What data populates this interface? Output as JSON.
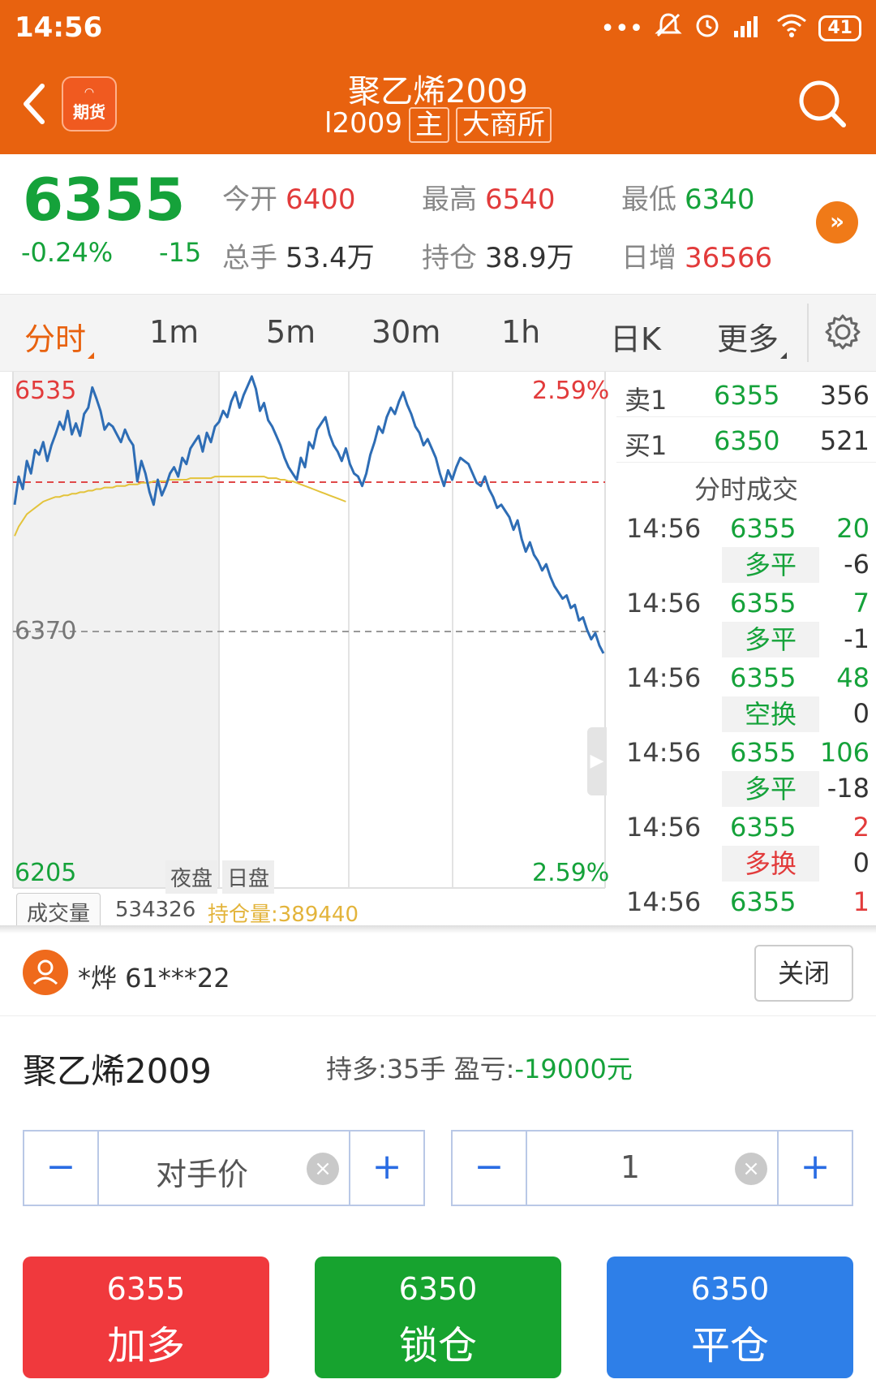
{
  "status_bar": {
    "time": "14:56",
    "battery": "41"
  },
  "header": {
    "app_badge": "期货",
    "title": "聚乙烯2009",
    "code": "l2009",
    "tag_main": "主",
    "tag_exchange": "大商所"
  },
  "quote": {
    "last_price": "6355",
    "change_pct": "-0.24%",
    "change": "-15",
    "open_label": "今开",
    "open_value": "6400",
    "high_label": "最高",
    "high_value": "6540",
    "low_label": "最低",
    "low_value": "6340",
    "volume_label": "总手",
    "volume_value": "53.4万",
    "oi_label": "持仓",
    "oi_value": "38.9万",
    "oi_change_label": "日增",
    "oi_change_value": "36566",
    "more_glyph": "»"
  },
  "tabs": [
    "分时",
    "1m",
    "5m",
    "30m",
    "1h",
    "日K",
    "更多"
  ],
  "chart": {
    "y_top_label": "6535",
    "y_mid_label": "6370",
    "y_bottom_label": "6205",
    "pct_top": "2.59%",
    "pct_bottom": "2.59%",
    "session_night": "夜盘",
    "session_day": "日盘",
    "volume_tag": "成交量",
    "volume_value": "534326",
    "open_interest": "持仓量:389440",
    "colors": {
      "price": "#2e6db5",
      "avg": "#e3c33b",
      "prev_close": "#e04848"
    }
  },
  "chart_data": {
    "type": "line",
    "ylim": [
      6205,
      6535
    ],
    "series": [
      {
        "values": [
          6450,
          6468,
          6460,
          6478,
          6470,
          6485,
          6482,
          6490,
          6478,
          6488,
          6495,
          6503,
          6498,
          6510,
          6495,
          6502,
          6494,
          6508,
          6512,
          6525,
          6518,
          6510,
          6498,
          6502,
          6500,
          6495,
          6490,
          6498,
          6492,
          6488,
          6465,
          6478,
          6470,
          6458,
          6450,
          6466,
          6456,
          6462,
          6470,
          6474,
          6468,
          6480,
          6476,
          6486,
          6490,
          6494,
          6484,
          6496,
          6490,
          6500,
          6503,
          6510,
          6506,
          6516,
          6522,
          6512,
          6520,
          6526,
          6532,
          6524,
          6510,
          6515,
          6504,
          6500,
          6494,
          6488,
          6480,
          6474,
          6470,
          6466,
          6480,
          6474,
          6490,
          6486,
          6498,
          6502,
          6506,
          6495,
          6488,
          6484,
          6478,
          6486,
          6476,
          6470,
          6468,
          6462,
          6470,
          6482,
          6490,
          6500,
          6496,
          6506,
          6512,
          6508,
          6516,
          6522,
          6514,
          6508,
          6500,
          6496,
          6488,
          6492,
          6486,
          6480,
          6470,
          6462,
          6472,
          6466,
          6474,
          6480,
          6478,
          6476,
          6470,
          6464,
          6462,
          6468,
          6460,
          6455,
          6448,
          6450,
          6446,
          6442,
          6434,
          6440,
          6428,
          6420,
          6426,
          6418,
          6414,
          6408,
          6412,
          6404,
          6398,
          6394,
          6390,
          6392,
          6384,
          6386,
          6376,
          6378,
          6370,
          6364,
          6368,
          6360,
          6355
        ]
      },
      {
        "values": [
          6430,
          6436,
          6440,
          6444,
          6446,
          6448,
          6450,
          6452,
          6453,
          6454,
          6455,
          6455,
          6456,
          6456,
          6457,
          6457,
          6458,
          6458,
          6459,
          6459,
          6460,
          6460,
          6461,
          6461,
          6461,
          6462,
          6462,
          6462,
          6463,
          6463,
          6463,
          6464,
          6464,
          6464,
          6465,
          6465,
          6465,
          6465,
          6466,
          6466,
          6466,
          6466,
          6466,
          6467,
          6467,
          6467,
          6467,
          6467,
          6467,
          6468,
          6468,
          6468,
          6468,
          6468,
          6468,
          6468,
          6468,
          6468,
          6468,
          6468,
          6468,
          6468,
          6467,
          6467,
          6467,
          6466,
          6466,
          6465,
          6465,
          6464,
          6463,
          6462,
          6461,
          6460,
          6459,
          6458,
          6457,
          6456,
          6455,
          6454,
          6453,
          6452
        ]
      }
    ]
  },
  "book": {
    "ask_label": "卖1",
    "ask_price": "6355",
    "ask_vol": "356",
    "bid_label": "买1",
    "bid_price": "6350",
    "bid_vol": "521"
  },
  "ticks_header": "分时成交",
  "ticks": [
    {
      "time": "14:56",
      "price": "6355",
      "qty": "20",
      "kind": "多平",
      "delta": "-6"
    },
    {
      "time": "14:56",
      "price": "6355",
      "qty": "7",
      "kind": "多平",
      "delta": "-1"
    },
    {
      "time": "14:56",
      "price": "6355",
      "qty": "48",
      "kind": "空换",
      "delta": "0"
    },
    {
      "time": "14:56",
      "price": "6355",
      "qty": "106",
      "kind": "多平",
      "delta": "-18"
    },
    {
      "time": "14:56",
      "price": "6355",
      "qty": "2",
      "kind": "多换",
      "delta": "0"
    },
    {
      "time": "14:56",
      "price": "6355",
      "qty": "1",
      "kind": "",
      "delta": ""
    }
  ],
  "trade": {
    "user": "*烨  61***22",
    "close": "关闭",
    "contract": "聚乙烯2009",
    "position_label": "持多:35手  盈亏:",
    "pnl": "-19000元",
    "price_mode": "对手价",
    "qty": "1",
    "minus": "−",
    "plus": "+",
    "clear": "×",
    "buttons": [
      {
        "price": "6355",
        "label": "加多",
        "color": "#f0393d"
      },
      {
        "price": "6350",
        "label": "锁仓",
        "color": "#17a32f"
      },
      {
        "price": "6350",
        "label": "平仓",
        "color": "#2e7fe8"
      }
    ]
  }
}
